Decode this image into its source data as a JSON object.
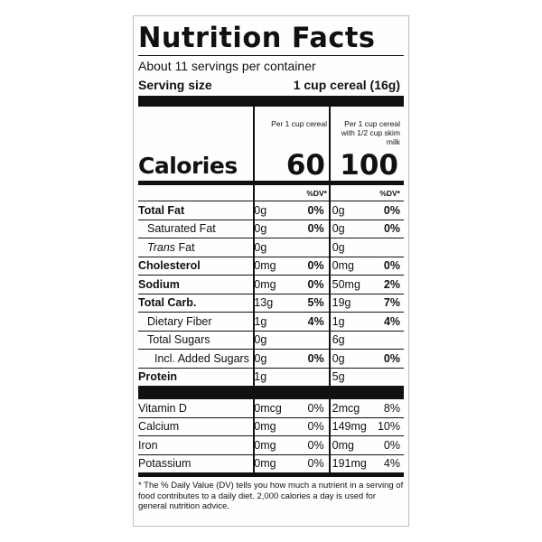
{
  "title": "Nutrition Facts",
  "servings_per_container": "About 11 servings per container",
  "serving_size": {
    "label": "Serving size",
    "value": "1 cup cereal (16g)"
  },
  "columns": {
    "col1": "Per 1 cup cereal",
    "col2_line1": "Per 1 cup cereal",
    "col2_line2": "with 1/2 cup skim milk"
  },
  "calories": {
    "label": "Calories",
    "col1": "60",
    "col2": "100"
  },
  "dv_header": {
    "col1": "%DV*",
    "col2": "%DV*"
  },
  "nutrients": [
    {
      "name": "Total Fat",
      "a1": "0g",
      "d1": "0%",
      "a2": "0g",
      "d2": "0%"
    },
    {
      "name": "Saturated Fat",
      "a1": "0g",
      "d1": "0%",
      "a2": "0g",
      "d2": "0%"
    },
    {
      "name_italic": "Trans",
      "name_rest": " Fat",
      "a1": "0g",
      "d1": "",
      "a2": "0g",
      "d2": ""
    },
    {
      "name": "Cholesterol",
      "a1": "0mg",
      "d1": "0%",
      "a2": "0mg",
      "d2": "0%"
    },
    {
      "name": "Sodium",
      "a1": "0mg",
      "d1": "0%",
      "a2": "50mg",
      "d2": "2%"
    },
    {
      "name": "Total Carb.",
      "a1": "13g",
      "d1": "5%",
      "a2": "19g",
      "d2": "7%"
    },
    {
      "name": "Dietary Fiber",
      "a1": "1g",
      "d1": "4%",
      "a2": "1g",
      "d2": "4%"
    },
    {
      "name": "Total Sugars",
      "a1": "0g",
      "d1": "",
      "a2": "6g",
      "d2": ""
    },
    {
      "name": "Incl. Added Sugars",
      "a1": "0g",
      "d1": "0%",
      "a2": "0g",
      "d2": "0%"
    },
    {
      "name": "Protein",
      "a1": "1g",
      "d1": "",
      "a2": "5g",
      "d2": ""
    }
  ],
  "vitamins": [
    {
      "name": "Vitamin D",
      "a1": "0mcg",
      "d1": "0%",
      "a2": "2mcg",
      "d2": "8%"
    },
    {
      "name": "Calcium",
      "a1": "0mg",
      "d1": "0%",
      "a2": "149mg",
      "d2": "10%"
    },
    {
      "name": "Iron",
      "a1": "0mg",
      "d1": "0%",
      "a2": "0mg",
      "d2": "0%"
    },
    {
      "name": "Potassium",
      "a1": "0mg",
      "d1": "0%",
      "a2": "191mg",
      "d2": "4%"
    }
  ],
  "footnote": "* The % Daily Value (DV) tells you how much a nutrient in a serving of food contributes to a daily diet. 2,000 calories a day is used for general nutrition advice."
}
